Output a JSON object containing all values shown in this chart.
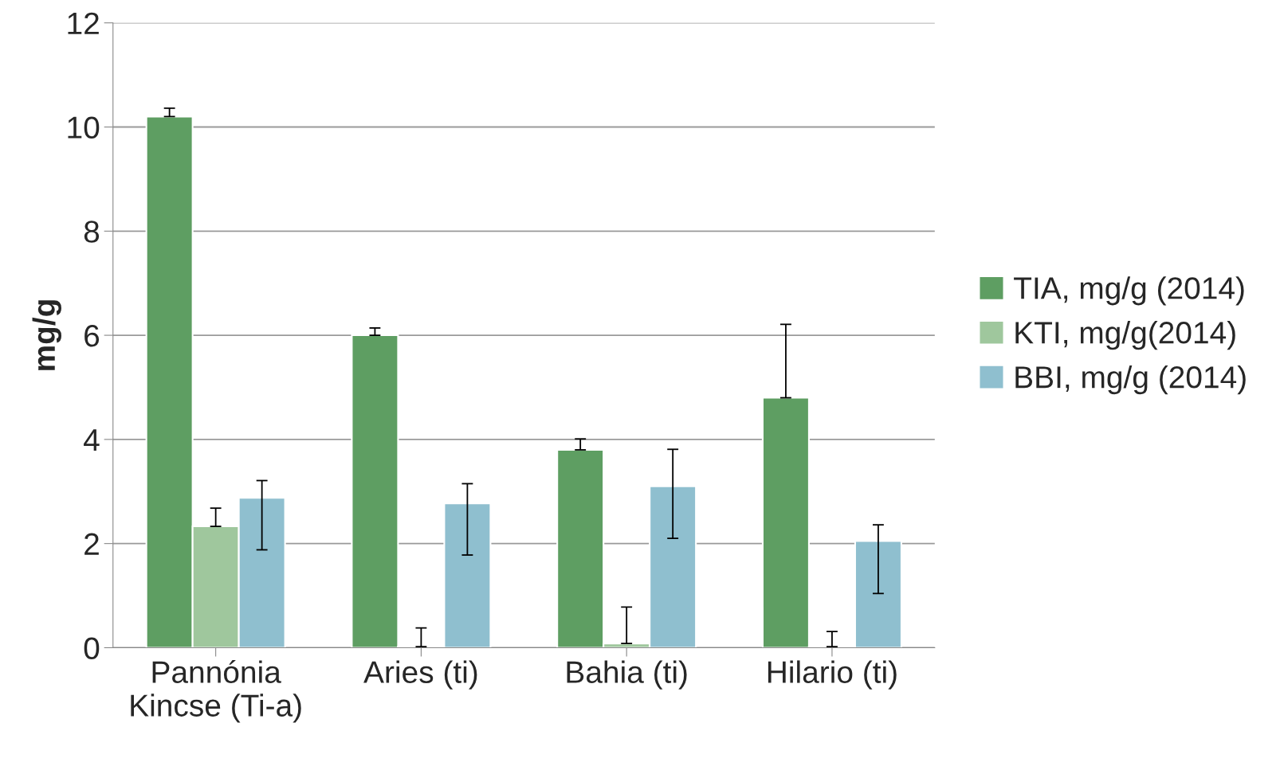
{
  "chart_data": {
    "type": "bar",
    "ylabel": "mg/g",
    "categories": [
      "Pannónia\nKincse (Ti-a)",
      "Aries (ti)",
      "Bahia (ti)",
      "Hilario (ti)"
    ],
    "series": [
      {
        "name": "TIA, mg/g (2014)",
        "color": "#5e9e62",
        "values": [
          10.2,
          6.0,
          3.8,
          4.8
        ],
        "errors": [
          [
            10.2,
            10.36
          ],
          [
            6.0,
            6.14
          ],
          [
            3.8,
            4.01
          ],
          [
            4.8,
            6.21
          ]
        ]
      },
      {
        "name": "KTI, mg/g(2014)",
        "color": "#9fc79d",
        "values": [
          2.33,
          0.02,
          0.08,
          0.02
        ],
        "errors": [
          [
            2.33,
            2.68
          ],
          [
            0.02,
            0.38
          ],
          [
            0.08,
            0.78
          ],
          [
            0.02,
            0.31
          ]
        ]
      },
      {
        "name": "BBI, mg/g (2014)",
        "color": "#8fbfcf",
        "values": [
          2.88,
          2.77,
          3.1,
          2.05
        ],
        "errors": [
          [
            1.88,
            3.21
          ],
          [
            1.78,
            3.15
          ],
          [
            2.1,
            3.81
          ],
          [
            1.04,
            2.36
          ]
        ]
      }
    ],
    "ylim": [
      0,
      12
    ],
    "yticks": [
      0,
      2,
      4,
      6,
      8,
      10,
      12
    ],
    "grid": "y",
    "legend": "right"
  }
}
